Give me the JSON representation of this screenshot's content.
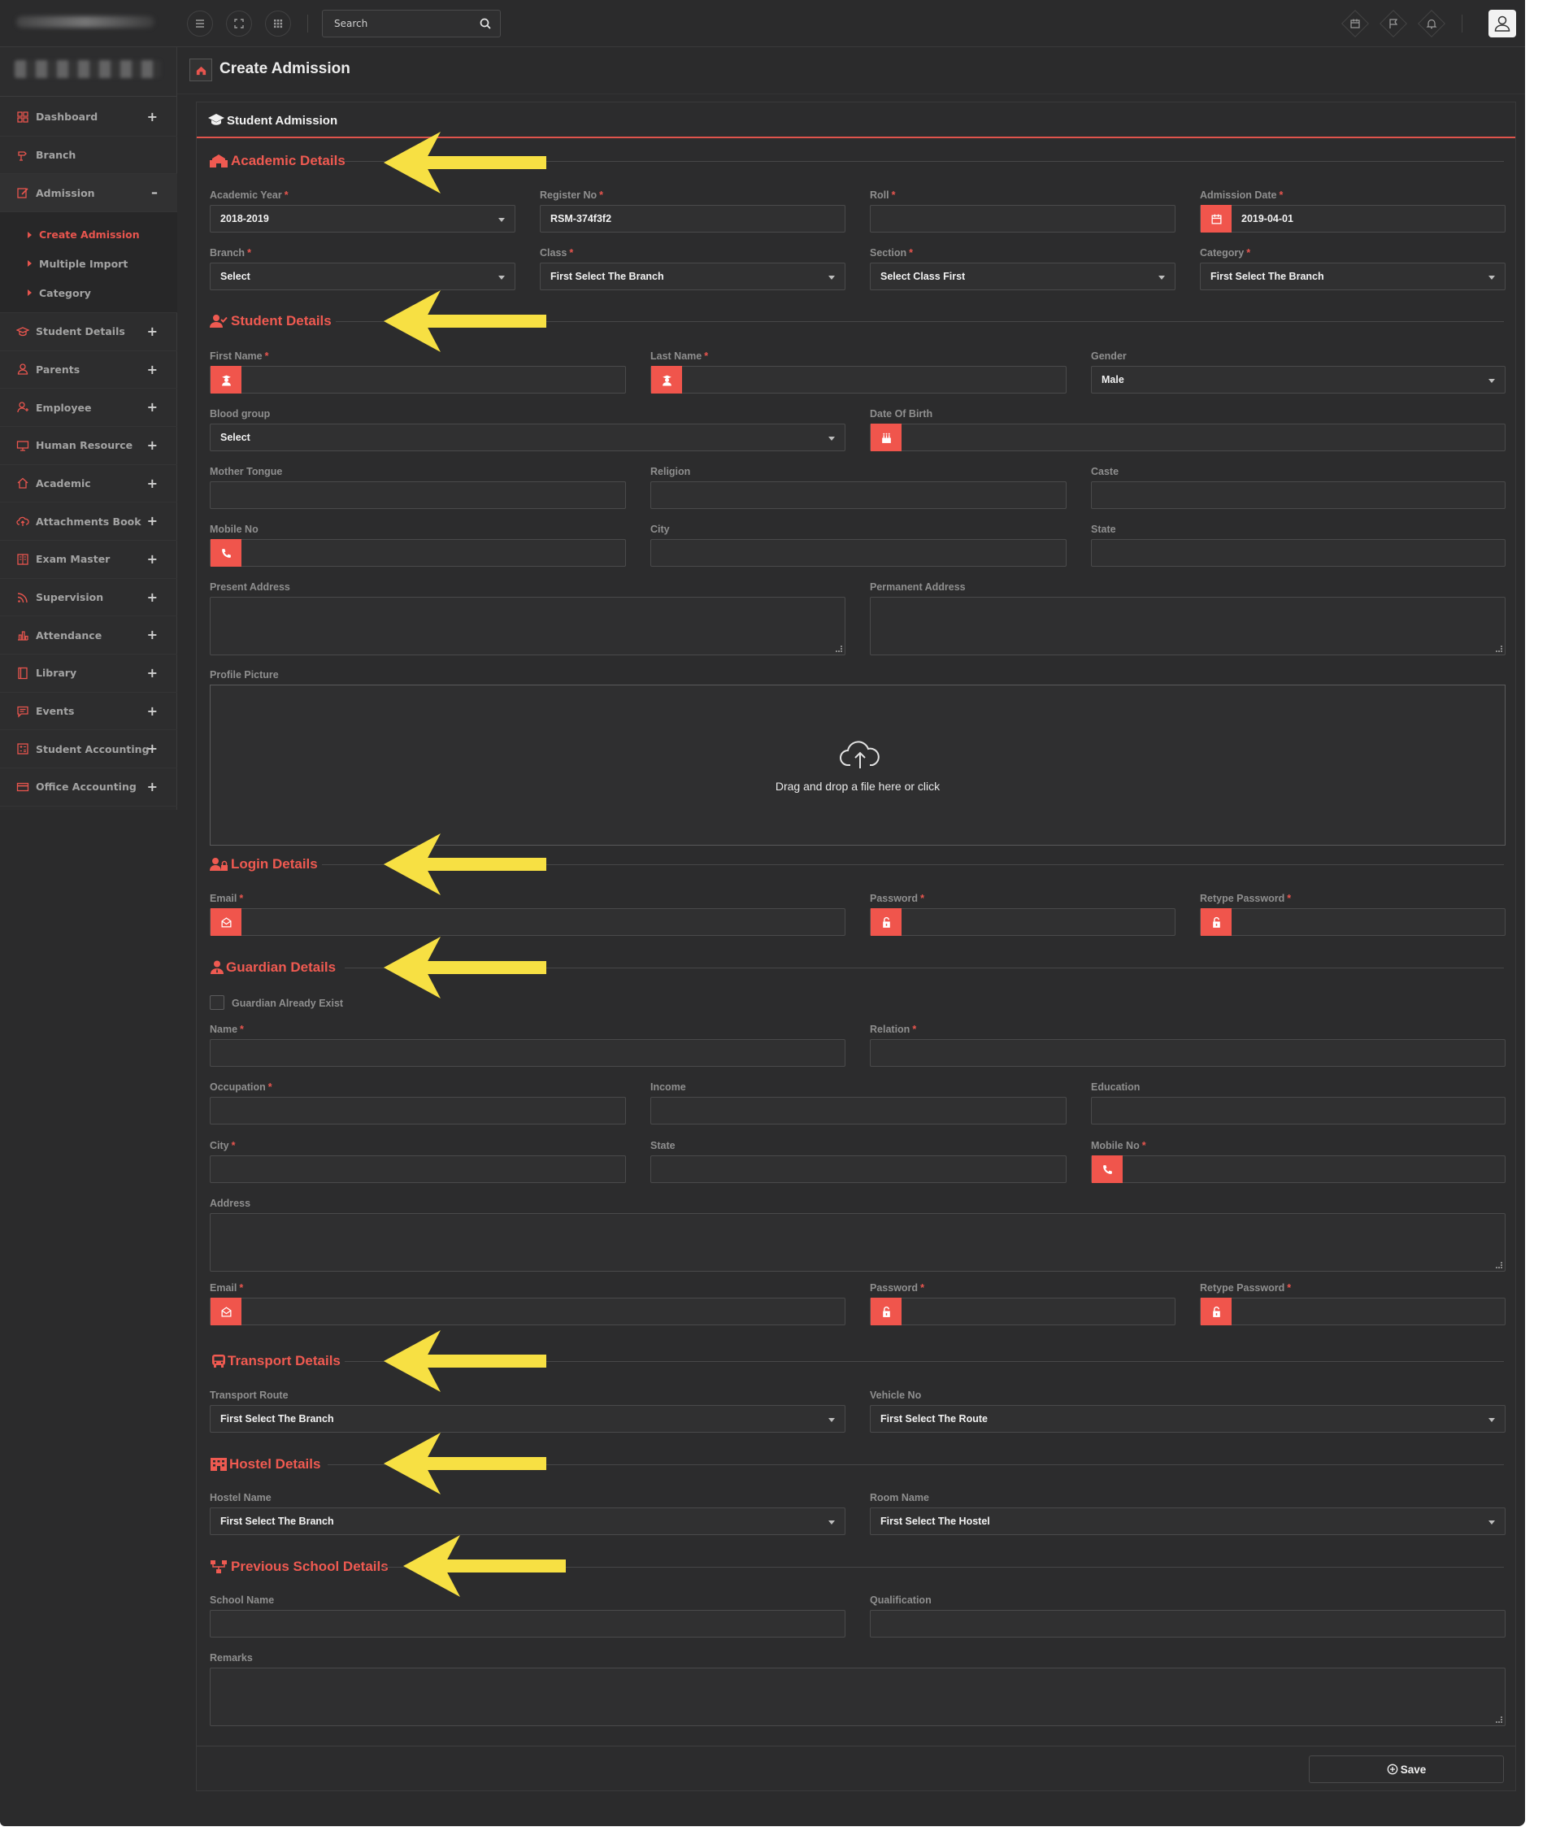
{
  "colors": {
    "background": "#2b2b2c",
    "accent": "#ef5a51",
    "arrow": "#f7e043",
    "text": "#f2f2f2",
    "muted": "#8f8f8f"
  },
  "topbar": {
    "search_placeholder": "Search",
    "left_icons": [
      "menu-icon",
      "fullscreen-icon",
      "apps-grid-icon"
    ],
    "right_icons": [
      "calendar-icon",
      "flag-icon",
      "bell-icon",
      "user-avatar-icon"
    ]
  },
  "sidebar": {
    "items": [
      {
        "label": "Dashboard",
        "icon": "dashboard-icon",
        "toggle": "+"
      },
      {
        "label": "Branch",
        "icon": "branch-icon",
        "toggle": ""
      },
      {
        "label": "Admission",
        "icon": "admission-icon",
        "toggle": "–"
      },
      {
        "label": "Student Details",
        "icon": "student-cap-icon",
        "toggle": "+"
      },
      {
        "label": "Parents",
        "icon": "parents-icon",
        "toggle": "+"
      },
      {
        "label": "Employee",
        "icon": "employee-icon",
        "toggle": "+"
      },
      {
        "label": "Human Resource",
        "icon": "monitor-icon",
        "toggle": "+"
      },
      {
        "label": "Academic",
        "icon": "home-icon",
        "toggle": "+"
      },
      {
        "label": "Attachments Book",
        "icon": "cloud-upload-icon",
        "toggle": "+"
      },
      {
        "label": "Exam Master",
        "icon": "book-icon",
        "toggle": "+"
      },
      {
        "label": "Supervision",
        "icon": "rss-icon",
        "toggle": "+"
      },
      {
        "label": "Attendance",
        "icon": "bar-chart-icon",
        "toggle": "+"
      },
      {
        "label": "Library",
        "icon": "library-book-icon",
        "toggle": "+"
      },
      {
        "label": "Events",
        "icon": "message-icon",
        "toggle": "+"
      },
      {
        "label": "Student Accounting",
        "icon": "calculator-icon",
        "toggle": "+"
      },
      {
        "label": "Office Accounting",
        "icon": "credit-card-icon",
        "toggle": "+"
      }
    ],
    "admission_submenu": [
      "Create Admission",
      "Multiple Import",
      "Category"
    ]
  },
  "page": {
    "title": "Create Admission",
    "panel_title": "Student Admission"
  },
  "sections": {
    "academic": "Academic Details",
    "student": "Student Details",
    "login": "Login Details",
    "guardian": "Guardian Details",
    "transport": "Transport Details",
    "hostel": "Hostel Details",
    "previous": "Previous School Details"
  },
  "academic": {
    "academic_year": {
      "label": "Academic Year",
      "value": "2018-2019"
    },
    "register_no": {
      "label": "Register No",
      "value": "RSM-374f3f2"
    },
    "roll": {
      "label": "Roll",
      "value": ""
    },
    "admission_date": {
      "label": "Admission Date",
      "value": "2019-04-01"
    },
    "branch": {
      "label": "Branch",
      "value": "Select"
    },
    "class": {
      "label": "Class",
      "value": "First Select The Branch"
    },
    "section": {
      "label": "Section",
      "value": "Select Class First"
    },
    "category": {
      "label": "Category",
      "value": "First Select The Branch"
    }
  },
  "student": {
    "first_name": {
      "label": "First Name",
      "value": ""
    },
    "last_name": {
      "label": "Last Name",
      "value": ""
    },
    "gender": {
      "label": "Gender",
      "value": "Male"
    },
    "blood_group": {
      "label": "Blood group",
      "value": "Select"
    },
    "dob": {
      "label": "Date Of Birth",
      "value": ""
    },
    "mother_tongue": {
      "label": "Mother Tongue",
      "value": ""
    },
    "religion": {
      "label": "Religion",
      "value": ""
    },
    "caste": {
      "label": "Caste",
      "value": ""
    },
    "mobile": {
      "label": "Mobile No",
      "value": ""
    },
    "city": {
      "label": "City",
      "value": ""
    },
    "state": {
      "label": "State",
      "value": ""
    },
    "present_address": {
      "label": "Present Address",
      "value": ""
    },
    "permanent_address": {
      "label": "Permanent Address",
      "value": ""
    },
    "profile_picture": {
      "label": "Profile Picture",
      "drop_text": "Drag and drop a file here or click"
    }
  },
  "login": {
    "email": {
      "label": "Email",
      "value": ""
    },
    "password": {
      "label": "Password",
      "value": ""
    },
    "retype_password": {
      "label": "Retype Password",
      "value": ""
    }
  },
  "guardian": {
    "already_exist": "Guardian Already Exist",
    "name": {
      "label": "Name",
      "value": ""
    },
    "relation": {
      "label": "Relation",
      "value": ""
    },
    "occupation": {
      "label": "Occupation",
      "value": ""
    },
    "income": {
      "label": "Income",
      "value": ""
    },
    "education": {
      "label": "Education",
      "value": ""
    },
    "city": {
      "label": "City",
      "value": ""
    },
    "state": {
      "label": "State",
      "value": ""
    },
    "mobile": {
      "label": "Mobile No",
      "value": ""
    },
    "address": {
      "label": "Address",
      "value": ""
    },
    "email": {
      "label": "Email",
      "value": ""
    },
    "password": {
      "label": "Password",
      "value": ""
    },
    "retype_password": {
      "label": "Retype Password",
      "value": ""
    }
  },
  "transport": {
    "route": {
      "label": "Transport Route",
      "value": "First Select The Branch"
    },
    "vehicle": {
      "label": "Vehicle No",
      "value": "First Select The Route"
    }
  },
  "hostel": {
    "name": {
      "label": "Hostel Name",
      "value": "First Select The Branch"
    },
    "room": {
      "label": "Room Name",
      "value": "First Select The Hostel"
    }
  },
  "previous": {
    "school_name": {
      "label": "School Name",
      "value": ""
    },
    "qualification": {
      "label": "Qualification",
      "value": ""
    },
    "remarks": {
      "label": "Remarks",
      "value": ""
    }
  },
  "footer": {
    "save_label": "Save"
  }
}
